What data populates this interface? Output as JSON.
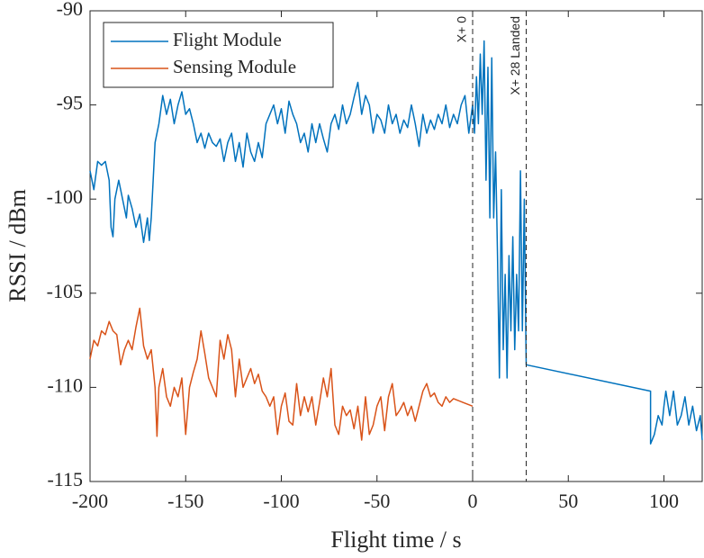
{
  "chart_data": {
    "type": "line",
    "xlabel": "Flight time / s",
    "ylabel": "RSSI / dBm",
    "xlim": [
      -200,
      120
    ],
    "ylim": [
      -115,
      -90
    ],
    "xticks": [
      -200,
      -150,
      -100,
      -50,
      0,
      50,
      100
    ],
    "yticks": [
      -115,
      -110,
      -105,
      -100,
      -95,
      -90
    ],
    "legend": "upper left",
    "annotations": [
      {
        "text": "X+ 0",
        "x": 0
      },
      {
        "text": "X+ 28 Landed",
        "x": 28
      }
    ],
    "series": [
      {
        "name": "Flight Module",
        "color": "#0072BD",
        "x": [
          -200,
          -198,
          -196,
          -194,
          -192,
          -190,
          -189,
          -188,
          -187,
          -185,
          -183,
          -181,
          -180,
          -178,
          -176,
          -174,
          -172,
          -170,
          -169,
          -168,
          -167,
          -166,
          -164,
          -162,
          -160,
          -158,
          -156,
          -154,
          -152,
          -150,
          -148,
          -146,
          -144,
          -142,
          -140,
          -138,
          -136,
          -134,
          -132,
          -130,
          -128,
          -126,
          -124,
          -122,
          -120,
          -118,
          -116,
          -114,
          -112,
          -110,
          -108,
          -106,
          -104,
          -102,
          -100,
          -98,
          -96,
          -94,
          -92,
          -90,
          -88,
          -86,
          -84,
          -82,
          -80,
          -78,
          -76,
          -74,
          -72,
          -70,
          -68,
          -66,
          -64,
          -62,
          -60,
          -58,
          -56,
          -54,
          -52,
          -50,
          -48,
          -46,
          -44,
          -42,
          -40,
          -38,
          -36,
          -34,
          -32,
          -30,
          -28,
          -26,
          -24,
          -22,
          -20,
          -18,
          -16,
          -14,
          -12,
          -10,
          -8,
          -6,
          -4,
          -2,
          0,
          1,
          2,
          3,
          4,
          5,
          6,
          7,
          8,
          9,
          10,
          11,
          12,
          13,
          14,
          15,
          16,
          17,
          18,
          19,
          20,
          21,
          22,
          23,
          24,
          25,
          26,
          27,
          28,
          93,
          93,
          95,
          97,
          99,
          100,
          101,
          103,
          105,
          107,
          109,
          111,
          113,
          115,
          117,
          119,
          120
        ],
        "values": [
          -98.5,
          -99.5,
          -98,
          -98.2,
          -98,
          -99,
          -101.5,
          -102,
          -100,
          -99,
          -100,
          -101,
          -99.8,
          -100.5,
          -101.5,
          -100.8,
          -102.3,
          -101,
          -102.2,
          -101,
          -99,
          -97,
          -96,
          -94.5,
          -95.5,
          -94.7,
          -96,
          -95,
          -94.3,
          -95.5,
          -95.2,
          -96,
          -97,
          -96.5,
          -97.3,
          -96.5,
          -97,
          -97.2,
          -96.8,
          -98,
          -97,
          -96.5,
          -98,
          -97,
          -98.3,
          -96.5,
          -97.5,
          -98,
          -97,
          -97.8,
          -96,
          -95.5,
          -95,
          -96,
          -95.2,
          -96.5,
          -94.8,
          -95.5,
          -96,
          -97,
          -96.5,
          -97.5,
          -96,
          -97,
          -96,
          -96.8,
          -97.5,
          -96,
          -95.5,
          -96.3,
          -95,
          -96,
          -95.5,
          -94.6,
          -93.8,
          -95.5,
          -94.5,
          -95,
          -96.5,
          -95.5,
          -95.8,
          -96.5,
          -95,
          -96,
          -95.5,
          -96.5,
          -95.8,
          -96.2,
          -95,
          -96,
          -97.2,
          -95.5,
          -96.5,
          -95.8,
          -96.3,
          -95.5,
          -96,
          -95,
          -96.2,
          -95.5,
          -96,
          -95,
          -94.5,
          -96.5,
          -95,
          -96.5,
          -93.5,
          -96,
          -92.3,
          -95.5,
          -91.6,
          -99,
          -93,
          -101,
          -92.5,
          -101,
          -97.5,
          -103,
          -109.5,
          -99.5,
          -108,
          -104,
          -109.5,
          -103,
          -107,
          -102,
          -108,
          -104,
          -107,
          -98.5,
          -107,
          -100,
          -108.8,
          -110.2,
          -113,
          -112.5,
          -111.5,
          -112,
          -111,
          -110.2,
          -111.5,
          -110.2,
          -112,
          -111.5,
          -110.5,
          -112,
          -111,
          -112.3,
          -111.5,
          -112.8
        ]
      },
      {
        "name": "Sensing Module",
        "color": "#D95319",
        "x": [
          -200,
          -198,
          -196,
          -194,
          -192,
          -190,
          -188,
          -186,
          -184,
          -182,
          -180,
          -178,
          -176,
          -174,
          -172,
          -170,
          -168,
          -166,
          -165,
          -164,
          -162,
          -160,
          -158,
          -156,
          -154,
          -152,
          -150,
          -148,
          -146,
          -144,
          -142,
          -140,
          -138,
          -136,
          -134,
          -132,
          -130,
          -128,
          -126,
          -124,
          -122,
          -120,
          -118,
          -116,
          -114,
          -112,
          -110,
          -108,
          -106,
          -104,
          -102,
          -100,
          -98,
          -96,
          -94,
          -92,
          -90,
          -88,
          -86,
          -84,
          -82,
          -80,
          -78,
          -76,
          -74,
          -72,
          -70,
          -68,
          -66,
          -64,
          -62,
          -60,
          -58,
          -56,
          -54,
          -52,
          -50,
          -48,
          -46,
          -44,
          -42,
          -40,
          -38,
          -36,
          -34,
          -32,
          -30,
          -28,
          -26,
          -24,
          -22,
          -20,
          -18,
          -16,
          -14,
          -12,
          -10,
          -5,
          0
        ],
        "values": [
          -108.5,
          -107.5,
          -107.8,
          -107,
          -107.2,
          -106.5,
          -107,
          -107.2,
          -108.8,
          -108,
          -107.5,
          -108,
          -106.8,
          -105.8,
          -107.8,
          -108.5,
          -108,
          -110,
          -112.6,
          -110,
          -109,
          -110.5,
          -111,
          -110,
          -110.5,
          -109.5,
          -112.5,
          -110,
          -109.2,
          -108.5,
          -107,
          -108.2,
          -109.5,
          -110,
          -110.5,
          -107.5,
          -108.5,
          -107.2,
          -108,
          -110.5,
          -108.5,
          -110,
          -109.5,
          -109,
          -109.8,
          -109.3,
          -110.2,
          -110.5,
          -111,
          -110.5,
          -112.5,
          -111,
          -110.3,
          -111.8,
          -112,
          -109.8,
          -111.5,
          -110.5,
          -111.3,
          -110.5,
          -112,
          -110.8,
          -109.5,
          -110.5,
          -109,
          -112,
          -112.5,
          -111,
          -111.5,
          -111.2,
          -112.2,
          -111,
          -112.8,
          -110.5,
          -112.5,
          -112,
          -111,
          -110.5,
          -112.3,
          -110.5,
          -109.8,
          -111.5,
          -111.2,
          -110.8,
          -111.5,
          -111,
          -111.8,
          -111,
          -110.2,
          -109.8,
          -110.5,
          -110.3,
          -110.8,
          -111,
          -110.5,
          -110.8,
          -110.6,
          -110.8,
          -111
        ]
      }
    ]
  }
}
